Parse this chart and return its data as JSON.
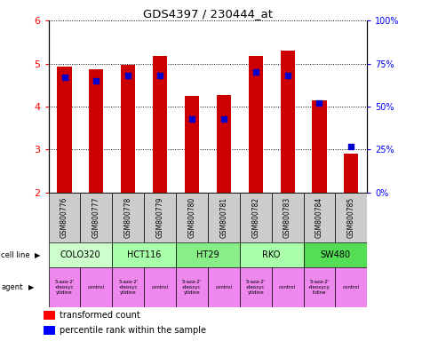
{
  "title": "GDS4397 / 230444_at",
  "samples": [
    "GSM800776",
    "GSM800777",
    "GSM800778",
    "GSM800779",
    "GSM800780",
    "GSM800781",
    "GSM800782",
    "GSM800783",
    "GSM800784",
    "GSM800785"
  ],
  "transformed_counts": [
    4.92,
    4.87,
    4.97,
    5.17,
    4.25,
    4.27,
    5.17,
    5.3,
    4.14,
    2.91
  ],
  "percentile_ranks": [
    67,
    65,
    68,
    68,
    43,
    43,
    70,
    68,
    52,
    27
  ],
  "ylim": [
    2,
    6
  ],
  "bar_color": "#cc0000",
  "dot_color": "#0000cc",
  "cell_lines": [
    {
      "name": "COLO320",
      "start": 0,
      "end": 2,
      "color": "#ccffcc"
    },
    {
      "name": "HCT116",
      "start": 2,
      "end": 4,
      "color": "#aaffaa"
    },
    {
      "name": "HT29",
      "start": 4,
      "end": 6,
      "color": "#88ee88"
    },
    {
      "name": "RKO",
      "start": 6,
      "end": 8,
      "color": "#aaffaa"
    },
    {
      "name": "SW480",
      "start": 8,
      "end": 10,
      "color": "#55dd55"
    }
  ],
  "agent_names": [
    "5-aza-2'\n-deoxyc\nytidine",
    "control",
    "5-aza-2'\n-deoxyc\nytidine",
    "control",
    "5-aza-2'\n-deoxyc\nytidine",
    "control",
    "5-aza-2'\n-deoxyc\nytidine",
    "control",
    "5-aza-2'\n-deoxycy\ntidine",
    "control"
  ],
  "y_ticks": [
    2,
    3,
    4,
    5,
    6
  ],
  "y_right_ticks": [
    0,
    25,
    50,
    75,
    100
  ],
  "y_right_labels": [
    "0%",
    "25%",
    "50%",
    "75%",
    "100%"
  ],
  "sample_bg_color": "#cccccc",
  "agent_color": "#ee88ee",
  "legend_red": "transformed count",
  "legend_blue": "percentile rank within the sample"
}
